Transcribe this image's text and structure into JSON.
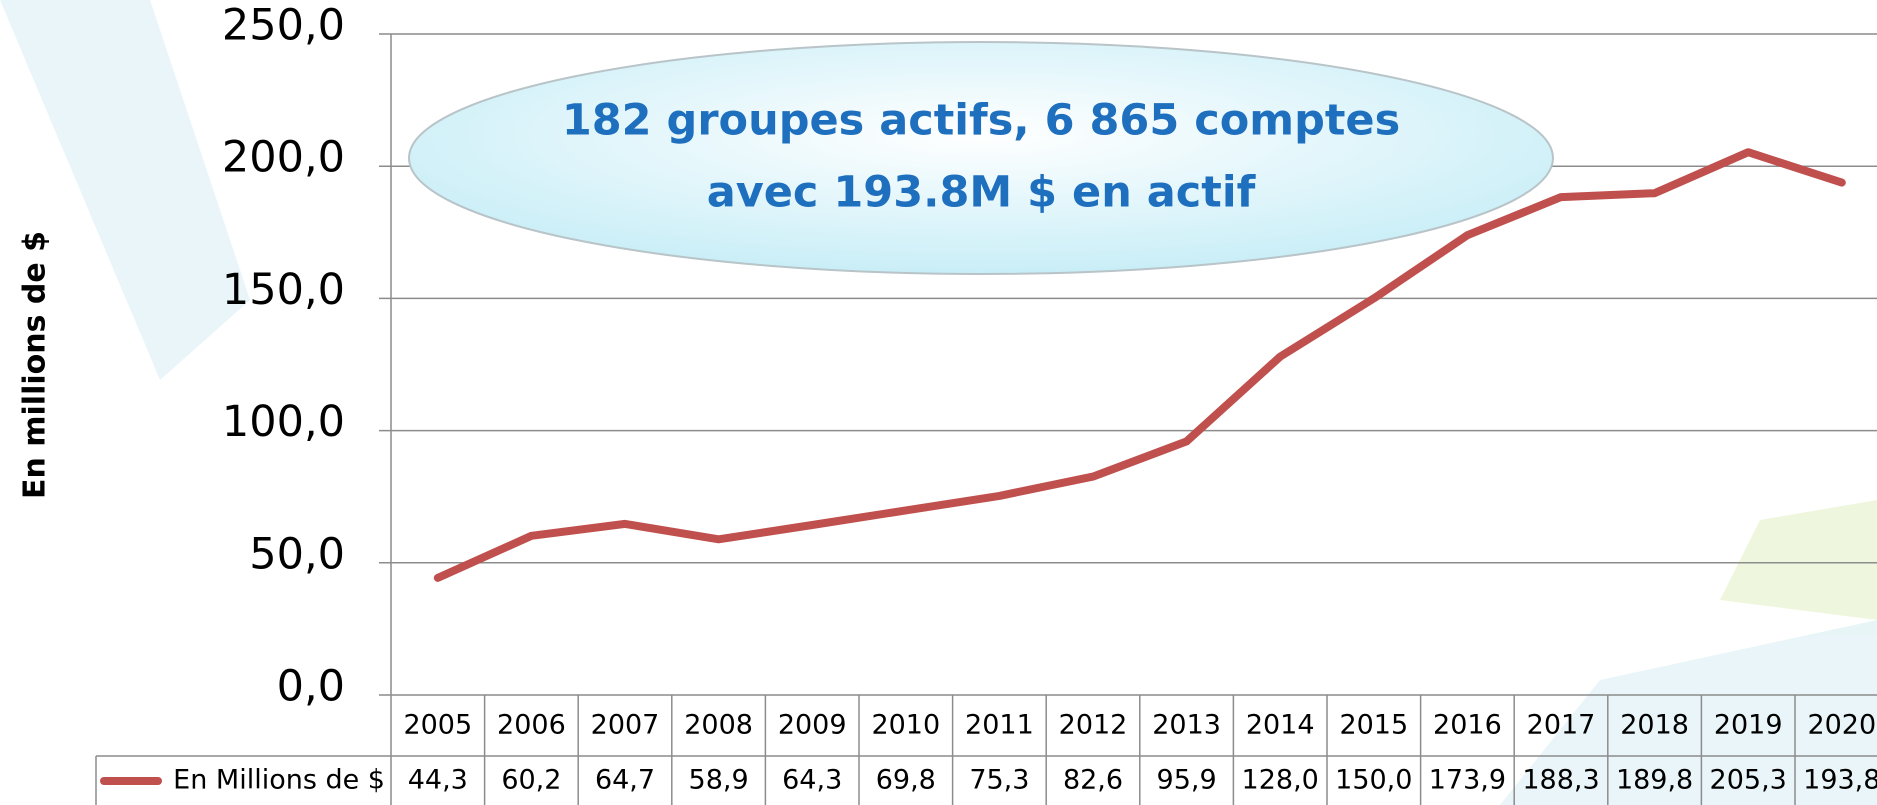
{
  "chart_data": {
    "type": "line",
    "annotation": [
      "182 groupes actifs, 6 865 comptes",
      "avec 193.8M $ en actif"
    ],
    "ylabel": "En millions de $",
    "categories": [
      "2005",
      "2006",
      "2007",
      "2008",
      "2009",
      "2010",
      "2011",
      "2012",
      "2013",
      "2014",
      "2015",
      "2016",
      "2017",
      "2018",
      "2019",
      "2020"
    ],
    "series": [
      {
        "name": "En Millions de $",
        "color": "#c0504d",
        "values": [
          44.3,
          60.2,
          64.7,
          58.9,
          64.3,
          69.8,
          75.3,
          82.6,
          95.9,
          128.0,
          150.0,
          173.9,
          188.3,
          189.8,
          205.3,
          193.8
        ],
        "value_labels": [
          "44,3",
          "60,2",
          "64,7",
          "58,9",
          "64,3",
          "69,8",
          "75,3",
          "82,6",
          "95,9",
          "128,0",
          "150,0",
          "173,9",
          "188,3",
          "189,8",
          "205,3",
          "193,8"
        ]
      }
    ],
    "ylim": [
      0,
      250
    ],
    "yticks": [
      {
        "value": 0,
        "label": "0,0"
      },
      {
        "value": 50,
        "label": "50,0"
      },
      {
        "value": 100,
        "label": "100,0"
      },
      {
        "value": 150,
        "label": "150,0"
      },
      {
        "value": 200,
        "label": "200,0"
      },
      {
        "value": 250,
        "label": "250,0"
      }
    ],
    "grid": true
  }
}
